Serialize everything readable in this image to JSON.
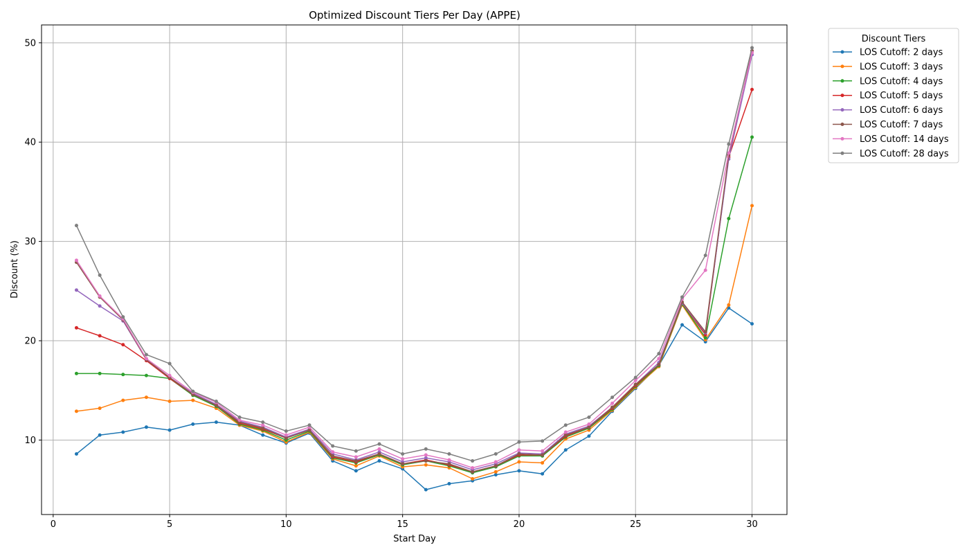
{
  "chart_data": {
    "type": "line",
    "title": "Optimized Discount Tiers Per Day (APPE)",
    "xlabel": "Start Day",
    "ylabel": "Discount (%)",
    "xlim": [
      -0.5,
      31.5
    ],
    "ylim": [
      2.5,
      51.8
    ],
    "xticks": [
      0,
      5,
      10,
      15,
      20,
      25,
      30
    ],
    "yticks": [
      10,
      20,
      30,
      40,
      50
    ],
    "grid": true,
    "legend_title": "Discount Tiers",
    "legend_placement": "outside-top-right",
    "marker": "dot",
    "x": [
      1,
      2,
      3,
      4,
      5,
      6,
      7,
      8,
      9,
      10,
      11,
      12,
      13,
      14,
      15,
      16,
      17,
      18,
      19,
      20,
      21,
      22,
      23,
      24,
      25,
      26,
      27,
      28,
      29,
      30
    ],
    "series": [
      {
        "name": "LOS Cutoff: 2 days",
        "color": "#1f77b4",
        "values": [
          8.6,
          10.5,
          10.8,
          11.3,
          11.0,
          11.6,
          11.8,
          11.5,
          10.5,
          9.7,
          10.7,
          7.9,
          6.9,
          7.9,
          7.1,
          5.0,
          5.6,
          5.9,
          6.5,
          6.9,
          6.6,
          9.0,
          10.4,
          12.9,
          15.2,
          17.5,
          21.6,
          19.9,
          23.3,
          21.7
        ]
      },
      {
        "name": "LOS Cutoff: 3 days",
        "color": "#ff7f0e",
        "values": [
          12.9,
          13.2,
          14.0,
          14.3,
          13.9,
          14.0,
          13.2,
          11.5,
          10.9,
          9.8,
          10.8,
          8.1,
          7.4,
          8.4,
          7.3,
          7.5,
          7.2,
          6.1,
          6.8,
          7.8,
          7.7,
          10.1,
          11.0,
          13.0,
          15.3,
          17.4,
          23.6,
          20.1,
          23.6,
          33.6
        ]
      },
      {
        "name": "LOS Cutoff: 4 days",
        "color": "#2ca02c",
        "values": [
          16.7,
          16.7,
          16.6,
          16.5,
          16.2,
          14.5,
          13.4,
          11.6,
          11.0,
          10.0,
          10.9,
          8.2,
          7.7,
          8.5,
          7.5,
          7.9,
          7.4,
          6.7,
          7.3,
          8.4,
          8.4,
          10.3,
          11.2,
          13.1,
          15.4,
          17.5,
          23.7,
          20.3,
          32.3,
          40.5
        ]
      },
      {
        "name": "LOS Cutoff: 5 days",
        "color": "#d62728",
        "values": [
          21.3,
          20.5,
          19.6,
          18.0,
          16.2,
          14.6,
          13.5,
          11.7,
          11.1,
          10.2,
          11.0,
          8.3,
          7.8,
          8.6,
          7.6,
          8.0,
          7.5,
          6.8,
          7.4,
          8.5,
          8.5,
          10.4,
          11.3,
          13.2,
          15.5,
          17.6,
          23.8,
          20.6,
          38.5,
          45.3
        ]
      },
      {
        "name": "LOS Cutoff: 6 days",
        "color": "#9467bd",
        "values": [
          25.1,
          23.5,
          22.0,
          18.1,
          16.3,
          14.7,
          13.6,
          11.9,
          11.3,
          10.3,
          11.1,
          8.6,
          8.0,
          8.8,
          7.8,
          8.2,
          7.8,
          7.0,
          7.6,
          8.7,
          8.6,
          10.6,
          11.4,
          13.3,
          15.6,
          17.8,
          23.8,
          20.8,
          38.3,
          48.8
        ]
      },
      {
        "name": "LOS Cutoff: 7 days",
        "color": "#8c564b",
        "values": [
          27.9,
          24.4,
          22.1,
          18.1,
          16.3,
          14.6,
          13.5,
          11.8,
          11.2,
          10.2,
          11.0,
          8.4,
          7.9,
          8.6,
          7.6,
          7.9,
          7.6,
          6.8,
          7.4,
          8.6,
          8.5,
          10.5,
          11.3,
          13.3,
          15.6,
          17.6,
          23.9,
          20.9,
          38.7,
          49.2
        ]
      },
      {
        "name": "LOS Cutoff: 14 days",
        "color": "#e377c2",
        "values": [
          28.1,
          24.5,
          22.2,
          18.2,
          16.5,
          14.8,
          13.8,
          12.0,
          11.5,
          10.5,
          11.3,
          8.8,
          8.3,
          9.1,
          8.1,
          8.5,
          8.0,
          7.2,
          7.8,
          9.0,
          8.9,
          10.8,
          11.6,
          13.7,
          16.0,
          18.2,
          24.2,
          27.1,
          38.9,
          49.0
        ]
      },
      {
        "name": "LOS Cutoff: 28 days",
        "color": "#7f7f7f",
        "values": [
          31.6,
          26.6,
          22.4,
          18.6,
          17.7,
          14.9,
          13.9,
          12.3,
          11.8,
          10.9,
          11.5,
          9.4,
          8.9,
          9.6,
          8.6,
          9.1,
          8.6,
          7.9,
          8.6,
          9.8,
          9.9,
          11.5,
          12.3,
          14.3,
          16.3,
          18.7,
          24.4,
          28.6,
          39.8,
          49.5
        ]
      }
    ]
  }
}
